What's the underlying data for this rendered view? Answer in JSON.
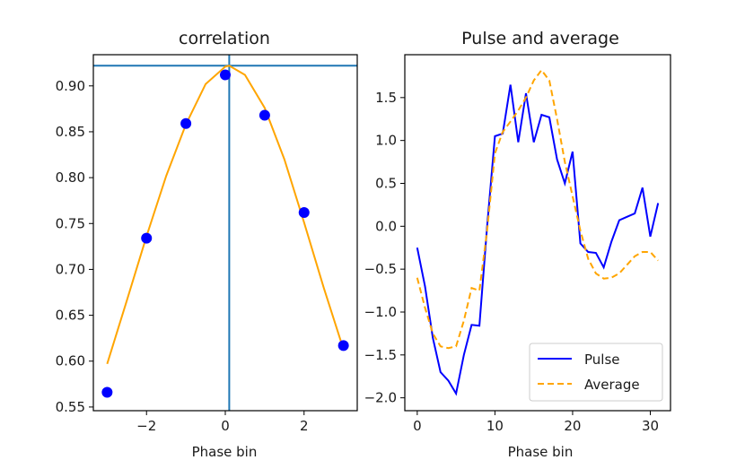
{
  "colors": {
    "scatter": "#0000ff",
    "fit_curve": "#ffa500",
    "ref_lines": "#1f77b4",
    "pulse": "#0000ff",
    "average": "#ffa500",
    "frame": "#000000"
  },
  "chart_data": [
    {
      "type": "scatter",
      "title": "correlation",
      "xlabel": "Phase bin",
      "ylabel": "",
      "xlim": [
        -3.35,
        3.35
      ],
      "ylim": [
        0.546,
        0.934
      ],
      "xticks": [
        -2,
        0,
        2
      ],
      "xtick_labels": [
        "−2",
        "0",
        "2"
      ],
      "yticks": [
        0.55,
        0.6,
        0.65,
        0.7,
        0.75,
        0.8,
        0.85,
        0.9
      ],
      "ytick_labels": [
        "0.55",
        "0.60",
        "0.65",
        "0.70",
        "0.75",
        "0.80",
        "0.85",
        "0.90"
      ],
      "points": {
        "x": [
          -3,
          -2,
          -1,
          0,
          1,
          2,
          3
        ],
        "y": [
          0.566,
          0.734,
          0.859,
          0.912,
          0.868,
          0.762,
          0.617
        ]
      },
      "fit": {
        "x": [
          -3.0,
          -2.5,
          -2.0,
          -1.5,
          -1.0,
          -0.5,
          0.0,
          0.1,
          0.5,
          1.0,
          1.5,
          2.0,
          2.5,
          3.0
        ],
        "y": [
          0.597,
          0.666,
          0.736,
          0.802,
          0.858,
          0.902,
          0.921,
          0.922,
          0.912,
          0.876,
          0.82,
          0.751,
          0.68,
          0.613
        ]
      },
      "vline_x": 0.1,
      "hline_y": 0.922
    },
    {
      "type": "line",
      "title": "Pulse and average",
      "xlabel": "Phase bin",
      "ylabel": "",
      "xlim": [
        -1.6,
        32.6
      ],
      "ylim": [
        -2.15,
        2.0
      ],
      "xticks": [
        0,
        10,
        20,
        30
      ],
      "xtick_labels": [
        "0",
        "10",
        "20",
        "30"
      ],
      "yticks": [
        -2.0,
        -1.5,
        -1.0,
        -0.5,
        0.0,
        0.5,
        1.0,
        1.5
      ],
      "ytick_labels": [
        "−2.0",
        "−1.5",
        "−1.0",
        "−0.5",
        "0.0",
        "0.5",
        "1.0",
        "1.5"
      ],
      "x": [
        0,
        1,
        2,
        3,
        4,
        5,
        6,
        7,
        8,
        9,
        10,
        11,
        12,
        13,
        14,
        15,
        16,
        17,
        18,
        19,
        20,
        21,
        22,
        23,
        24,
        25,
        26,
        27,
        28,
        29,
        30,
        31
      ],
      "series": [
        {
          "name": "Pulse",
          "style": "solid",
          "values": [
            -0.25,
            -0.7,
            -1.3,
            -1.7,
            -1.8,
            -1.95,
            -1.5,
            -1.15,
            -1.16,
            0.0,
            1.05,
            1.08,
            1.65,
            0.98,
            1.55,
            0.98,
            1.3,
            1.27,
            0.78,
            0.5,
            0.87,
            -0.2,
            -0.3,
            -0.31,
            -0.48,
            -0.18,
            0.07,
            0.11,
            0.15,
            0.45,
            -0.12,
            0.27
          ]
        },
        {
          "name": "Average",
          "style": "dashed",
          "values": [
            -0.6,
            -0.95,
            -1.25,
            -1.4,
            -1.42,
            -1.4,
            -1.1,
            -0.72,
            -0.75,
            -0.05,
            0.85,
            1.1,
            1.22,
            1.35,
            1.5,
            1.7,
            1.82,
            1.7,
            1.25,
            0.75,
            0.35,
            -0.05,
            -0.38,
            -0.55,
            -0.61,
            -0.6,
            -0.55,
            -0.45,
            -0.35,
            -0.3,
            -0.3,
            -0.4
          ]
        }
      ],
      "legend": {
        "position": "lower-right",
        "entries": [
          "Pulse",
          "Average"
        ]
      }
    }
  ]
}
